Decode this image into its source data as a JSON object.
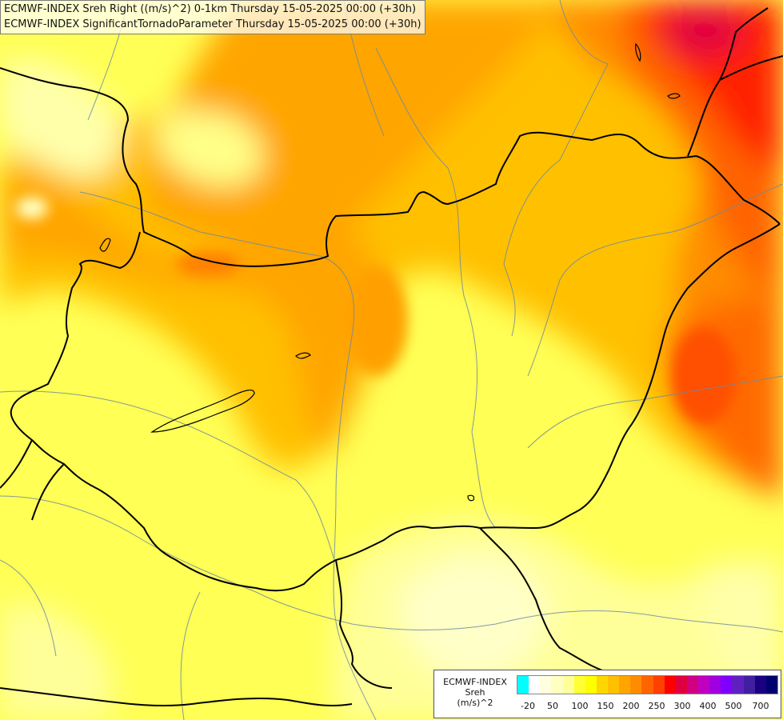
{
  "title_lines": [
    "ECMWF-INDEX Sreh Right ((m/s)^2) 0-1km Thursday 15-05-2025 00:00 (+30h)",
    "ECMWF-INDEX SignificantTornadoParameter Thursday 15-05-2025 00:00 (+30h)"
  ],
  "legend": {
    "lines": [
      "ECMWF-INDEX",
      "Sreh",
      "(m/s)^2"
    ],
    "colors": [
      "#00ffff",
      "#ffffff",
      "#ffffe0",
      "#ffffc0",
      "#ffff99",
      "#ffff33",
      "#ffff00",
      "#ffd700",
      "#ffc000",
      "#ffa500",
      "#ff8c00",
      "#ff6400",
      "#ff4000",
      "#ff0000",
      "#e00040",
      "#d00080",
      "#c000c0",
      "#a000e0",
      "#8000ff",
      "#6020c0",
      "#4020a0",
      "#1a0080",
      "#00006e"
    ],
    "ticks": [
      "-20",
      "50",
      "100",
      "150",
      "200",
      "250",
      "300",
      "400",
      "500",
      "700"
    ]
  }
}
